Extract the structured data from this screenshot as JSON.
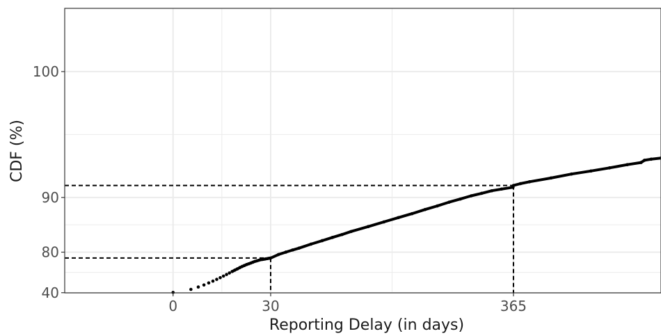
{
  "chart_data": {
    "type": "scatter",
    "title": "",
    "xlabel": "Reporting Delay (in days)",
    "ylabel": "CDF (%)",
    "xlim": [
      -37,
      750
    ],
    "ylim": [
      38.6,
      103
    ],
    "x_ticks": [
      0,
      30,
      365
    ],
    "y_ticks": [
      40,
      80,
      90,
      100
    ],
    "grid": true,
    "legend": "none",
    "colors": {
      "points": "#000000",
      "reference_lines": "#000000",
      "grid": "#ebebeb",
      "panel_border": "#333333"
    },
    "reference_lines": [
      {
        "x": 30,
        "y": 78.2
      },
      {
        "x": 365,
        "y": 91.4
      }
    ],
    "series": [
      {
        "points": [
          [
            0,
            41.8
          ],
          [
            1,
            54.0
          ],
          [
            2,
            58.8
          ],
          [
            3,
            61.8
          ],
          [
            4,
            64.2
          ],
          [
            5,
            66.0
          ],
          [
            6,
            67.5
          ],
          [
            7,
            68.8
          ],
          [
            8,
            69.9
          ],
          [
            9,
            70.9
          ],
          [
            10,
            71.8
          ],
          [
            11,
            72.6
          ],
          [
            12,
            73.3
          ],
          [
            13,
            73.9
          ],
          [
            14,
            74.5
          ],
          [
            15,
            75.0
          ],
          [
            16,
            75.4
          ],
          [
            17,
            75.8
          ],
          [
            18,
            76.1
          ],
          [
            19,
            76.4
          ],
          [
            20,
            76.7
          ],
          [
            21,
            77.0
          ],
          [
            22,
            77.2
          ],
          [
            23,
            77.4
          ],
          [
            24,
            77.6
          ],
          [
            25,
            77.7
          ],
          [
            26,
            77.8
          ],
          [
            27,
            77.9
          ],
          [
            28,
            78.0
          ],
          [
            29,
            78.1
          ],
          [
            30,
            78.2
          ],
          [
            35,
            79.3
          ],
          [
            40,
            80.0
          ],
          [
            45,
            80.6
          ],
          [
            50,
            81.1
          ],
          [
            60,
            82.1
          ],
          [
            70,
            82.9
          ],
          [
            80,
            83.6
          ],
          [
            90,
            84.2
          ],
          [
            100,
            84.8
          ],
          [
            120,
            85.7
          ],
          [
            140,
            86.5
          ],
          [
            160,
            87.2
          ],
          [
            180,
            87.8
          ],
          [
            200,
            88.4
          ],
          [
            220,
            88.9
          ],
          [
            240,
            89.4
          ],
          [
            260,
            89.8
          ],
          [
            280,
            90.2
          ],
          [
            300,
            90.5
          ],
          [
            320,
            90.8
          ],
          [
            340,
            91.0
          ],
          [
            364,
            91.2
          ],
          [
            365,
            91.4
          ],
          [
            380,
            91.6
          ],
          [
            400,
            91.8
          ],
          [
            450,
            92.2
          ],
          [
            500,
            92.6
          ],
          [
            550,
            92.9
          ],
          [
            600,
            93.2
          ],
          [
            650,
            93.5
          ],
          [
            690,
            93.7
          ],
          [
            700,
            93.9
          ],
          [
            720,
            94.0
          ],
          [
            750,
            94.1
          ]
        ]
      }
    ]
  }
}
